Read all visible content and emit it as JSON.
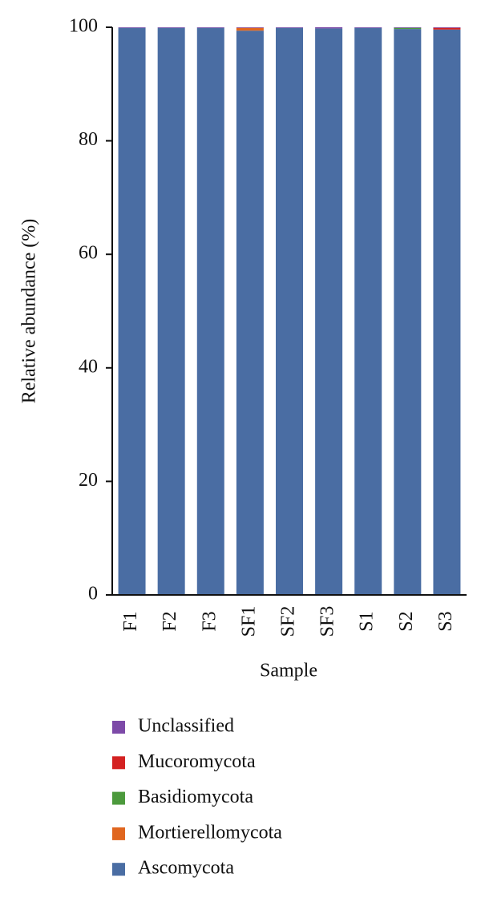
{
  "chart_data": {
    "type": "stacked_bar",
    "x_label": "Sample",
    "y_label": "Relative abundance (%)",
    "categories": [
      "F1",
      "F2",
      "F3",
      "SF1",
      "SF2",
      "SF3",
      "S1",
      "S2",
      "S3"
    ],
    "series": [
      {
        "name": "Ascomycota",
        "color": "#4a6da3",
        "values": [
          99.9,
          99.9,
          99.9,
          99.4,
          99.9,
          99.8,
          99.9,
          99.7,
          99.6
        ]
      },
      {
        "name": "Mortierellomycota",
        "color": "#e0661f",
        "values": [
          0,
          0,
          0,
          0.5,
          0,
          0,
          0,
          0,
          0
        ]
      },
      {
        "name": "Basidiomycota",
        "color": "#4c9a3d",
        "values": [
          0,
          0,
          0,
          0,
          0,
          0,
          0,
          0.2,
          0
        ]
      },
      {
        "name": "Mucoromycota",
        "color": "#d42222",
        "values": [
          0,
          0,
          0,
          0,
          0,
          0,
          0,
          0,
          0.3
        ]
      },
      {
        "name": "Unclassified",
        "color": "#7d4aa8",
        "values": [
          0.1,
          0.1,
          0.1,
          0.1,
          0.1,
          0.2,
          0.1,
          0.1,
          0.1
        ]
      }
    ],
    "ylim": [
      0,
      100
    ],
    "yticks": [
      0,
      20,
      40,
      60,
      80,
      100
    ]
  }
}
